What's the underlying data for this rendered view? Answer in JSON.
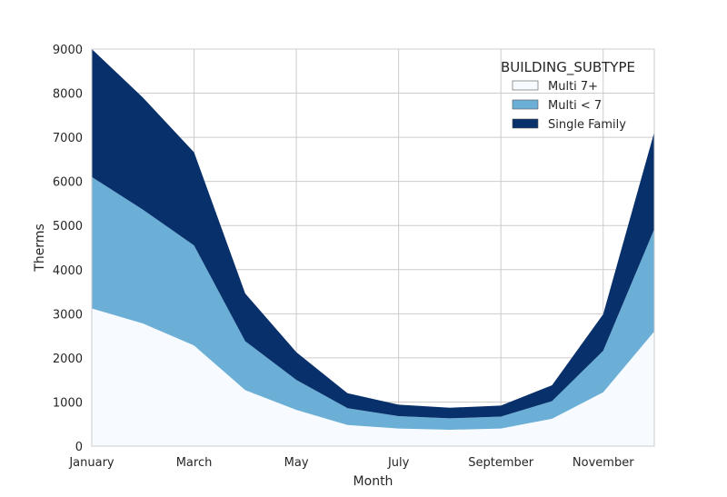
{
  "chart_data": {
    "type": "area",
    "stacked": true,
    "x": [
      "January",
      "February",
      "March",
      "April",
      "May",
      "June",
      "July",
      "August",
      "September",
      "October",
      "November",
      "December"
    ],
    "x_tick_labels": [
      "January",
      "March",
      "May",
      "July",
      "September",
      "November"
    ],
    "xlabel": "Month",
    "ylabel": "Therms",
    "ylim": [
      0,
      9000
    ],
    "y_ticks": [
      0,
      1000,
      2000,
      3000,
      4000,
      5000,
      6000,
      7000,
      8000,
      9000
    ],
    "grid": true,
    "legend": {
      "title": "BUILDING_SUBTYPE",
      "placement": "top-right"
    },
    "series": [
      {
        "name": "Multi 7+",
        "color": "#f7fbff",
        "values": [
          3120,
          2780,
          2280,
          1270,
          820,
          480,
          400,
          370,
          400,
          620,
          1220,
          2600
        ]
      },
      {
        "name": "Multi < 7",
        "color": "#6baed6",
        "values": [
          2980,
          2580,
          2270,
          1110,
          680,
          380,
          280,
          260,
          270,
          400,
          940,
          2320
        ]
      },
      {
        "name": "Single Family",
        "color": "#08306b",
        "values": [
          2900,
          2540,
          2110,
          1080,
          630,
          340,
          260,
          240,
          250,
          360,
          830,
          2200
        ]
      }
    ]
  }
}
